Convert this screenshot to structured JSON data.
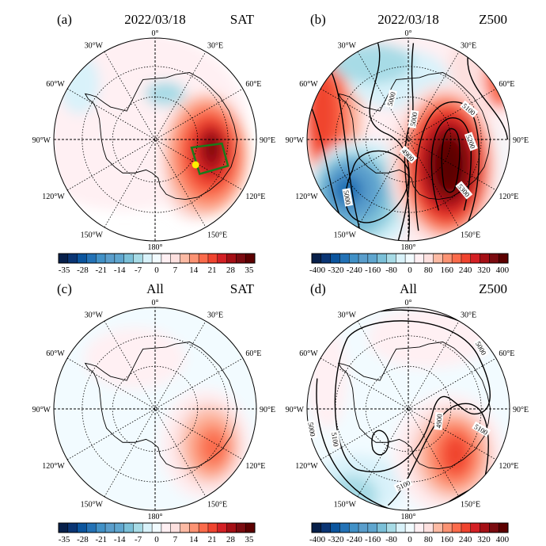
{
  "panels": [
    {
      "label": "(a)",
      "title": "2022/03/18",
      "variable": "SAT",
      "colorbar_ticks": [
        "-35",
        "-28",
        "-21",
        "-14",
        "-7",
        "0",
        "7",
        "14",
        "21",
        "28",
        "35"
      ],
      "contour_labels": []
    },
    {
      "label": "(b)",
      "title": "2022/03/18",
      "variable": "Z500",
      "colorbar_ticks": [
        "-400",
        "-320",
        "-240",
        "-160",
        "-80",
        "0",
        "80",
        "160",
        "240",
        "320",
        "400"
      ],
      "contour_labels": [
        "5000",
        "5000",
        "4900",
        "5000",
        "5100",
        "5200",
        "5300"
      ]
    },
    {
      "label": "(c)",
      "title": "All",
      "variable": "SAT",
      "colorbar_ticks": [
        "-35",
        "-28",
        "-21",
        "-14",
        "-7",
        "0",
        "7",
        "14",
        "21",
        "28",
        "35"
      ],
      "contour_labels": []
    },
    {
      "label": "(d)",
      "title": "All",
      "variable": "Z500",
      "colorbar_ticks": [
        "-400",
        "-320",
        "-240",
        "-160",
        "-80",
        "0",
        "80",
        "160",
        "240",
        "320",
        "400"
      ],
      "contour_labels": [
        "5000",
        "5100",
        "5000",
        "4900",
        "5100",
        "5100"
      ]
    }
  ],
  "longitude_labels": [
    "0°",
    "30°E",
    "60°E",
    "90°E",
    "120°E",
    "150°E",
    "180°",
    "150°W",
    "120°W",
    "90°W",
    "60°W",
    "30°W"
  ],
  "colorbar_colors": [
    "#08204a",
    "#0a3574",
    "#0b559e",
    "#2372b6",
    "#4191c7",
    "#5a9ecc",
    "#5fa6cf",
    "#7bc0d8",
    "#a7dbe6",
    "#d9f2fa",
    "#f2fbff",
    "#fff0f3",
    "#fde0df",
    "#fcbaa4",
    "#fc9373",
    "#fb6b4b",
    "#f0442f",
    "#d42025",
    "#a50f15",
    "#7b0b10",
    "#5c0000"
  ],
  "box_color": "#1a7a1a",
  "marker_color": "#ffee00"
}
